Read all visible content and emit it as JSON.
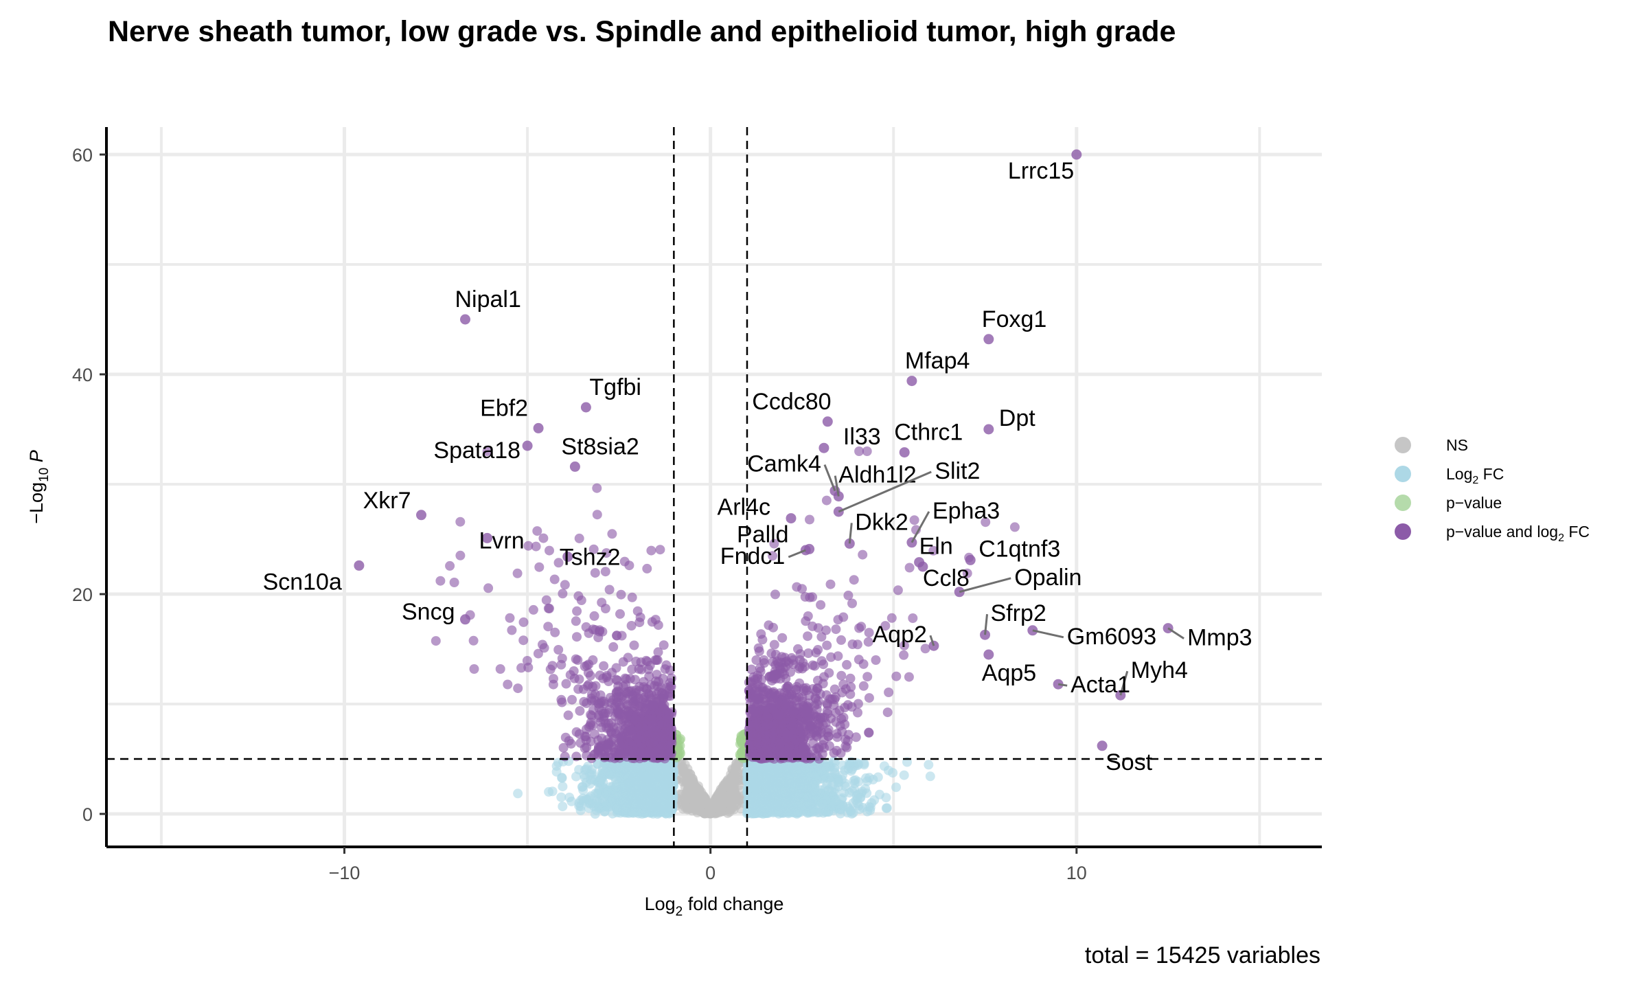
{
  "chart_data": {
    "type": "scatter",
    "title": "Nerve sheath tumor, low grade vs. Spindle and epithelioid tumor, high grade",
    "xlabel": "Log2 fold change",
    "ylabel": "-Log10 P",
    "xlim": [
      -16.5,
      16.7
    ],
    "ylim": [
      -3,
      62.5
    ],
    "x_ticks": [
      -10,
      0,
      10
    ],
    "x_tick_labels": [
      "−10",
      "0",
      "10"
    ],
    "y_ticks": [
      0,
      20,
      40,
      60
    ],
    "y_tick_labels": [
      "0",
      "20",
      "40",
      "60"
    ],
    "grid": true,
    "legend_position": "right",
    "thresholds": {
      "log2fc": [
        -1,
        1
      ],
      "neg_log10_p": 5
    },
    "caption": "total = 15425 variables",
    "legend": [
      {
        "key": "NS",
        "label": "NS",
        "color": "#c6c6c6"
      },
      {
        "key": "FC",
        "label": "Log",
        "sub": "2",
        "tail": " FC",
        "color": "#add8e6"
      },
      {
        "key": "P",
        "label": "p−value",
        "color": "#b5dbab"
      },
      {
        "key": "PFC",
        "label": "p−value and log",
        "sub": "2",
        "tail": " FC",
        "color": "#8c5ba8"
      }
    ],
    "colors": {
      "NS": "#c0c0c0",
      "FC": "#add8e6",
      "P": "#9fd08e",
      "PFC": "#8c5ba8"
    },
    "labeled_points": [
      {
        "gene": "Lrrc15",
        "x": 10.0,
        "y": 60.0
      },
      {
        "gene": "Nipal1",
        "x": -6.7,
        "y": 45.0
      },
      {
        "gene": "Foxg1",
        "x": 7.6,
        "y": 43.2
      },
      {
        "gene": "Mfap4",
        "x": 5.5,
        "y": 39.4
      },
      {
        "gene": "Tgfbi",
        "x": -3.4,
        "y": 37.0
      },
      {
        "gene": "Ebf2",
        "x": -4.7,
        "y": 35.1
      },
      {
        "gene": "Dpt",
        "x": 7.6,
        "y": 35.0
      },
      {
        "gene": "Ccdc80",
        "x": 3.2,
        "y": 35.7
      },
      {
        "gene": "Spata18",
        "x": -5.0,
        "y": 33.5
      },
      {
        "gene": "St8sia2",
        "x": -3.7,
        "y": 31.6
      },
      {
        "gene": "Il33",
        "x": 3.1,
        "y": 33.3
      },
      {
        "gene": "Cthrc1",
        "x": 5.3,
        "y": 32.9
      },
      {
        "gene": "Camk4",
        "x": 3.4,
        "y": 29.4
      },
      {
        "gene": "Aldh1l2",
        "x": 3.5,
        "y": 28.9
      },
      {
        "gene": "Slit2",
        "x": 3.5,
        "y": 27.5
      },
      {
        "gene": "Xkr7",
        "x": -7.9,
        "y": 27.2
      },
      {
        "gene": "Arl4c",
        "x": 2.2,
        "y": 26.9
      },
      {
        "gene": "Dkk2",
        "x": 3.8,
        "y": 24.6
      },
      {
        "gene": "Epha3",
        "x": 5.5,
        "y": 24.7
      },
      {
        "gene": "Lvrn",
        "x": -6.1,
        "y": 25.1
      },
      {
        "gene": "Palld",
        "x": 2.7,
        "y": 24.1
      },
      {
        "gene": "Tshz2",
        "x": -3.9,
        "y": 23.4
      },
      {
        "gene": "Eln",
        "x": 5.7,
        "y": 22.9
      },
      {
        "gene": "C1qtnf3",
        "x": 7.1,
        "y": 23.1
      },
      {
        "gene": "Fndc1",
        "x": 2.6,
        "y": 24.0
      },
      {
        "gene": "Scn10a",
        "x": -9.6,
        "y": 22.6
      },
      {
        "gene": "Ccl8",
        "x": 5.8,
        "y": 22.5
      },
      {
        "gene": "Opalin",
        "x": 6.8,
        "y": 20.2
      },
      {
        "gene": "Sfrp2",
        "x": 7.5,
        "y": 16.3
      },
      {
        "gene": "Aqp2",
        "x": 6.1,
        "y": 15.3
      },
      {
        "gene": "Gm6093",
        "x": 8.8,
        "y": 16.7
      },
      {
        "gene": "Mmp3",
        "x": 12.5,
        "y": 16.9
      },
      {
        "gene": "Sncg",
        "x": -6.7,
        "y": 17.7
      },
      {
        "gene": "Aqp5",
        "x": 7.6,
        "y": 14.5
      },
      {
        "gene": "Myh4",
        "x": 11.2,
        "y": 10.8
      },
      {
        "gene": "Acta1",
        "x": 9.5,
        "y": 11.8
      },
      {
        "gene": "Sost",
        "x": 10.7,
        "y": 6.2
      }
    ]
  }
}
